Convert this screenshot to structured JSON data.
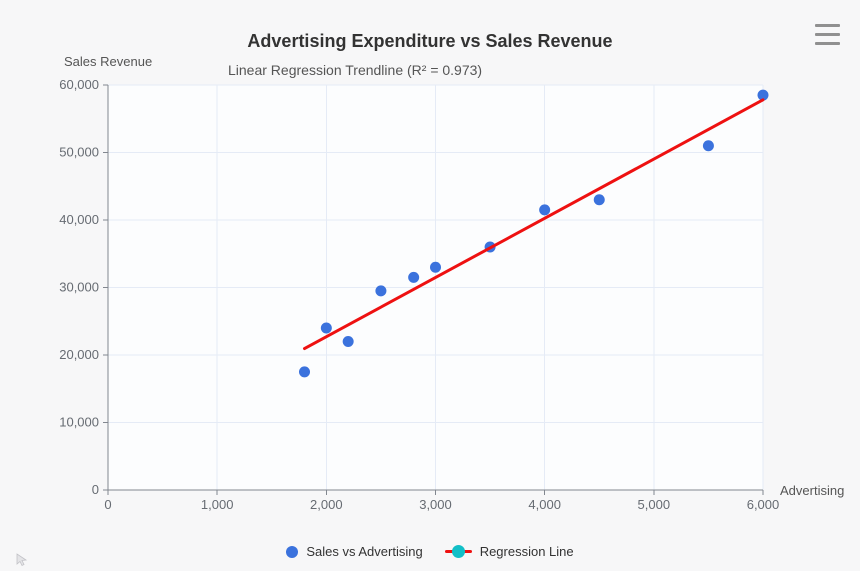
{
  "header": {
    "title": "Advertising Expenditure vs Sales Revenue",
    "subtitle": "Linear Regression Trendline (R² = 0.973)"
  },
  "axes": {
    "y_title": "Sales Revenue",
    "x_title": "Advertising"
  },
  "legend": {
    "items": [
      {
        "label": "Sales vs Advertising",
        "marker": "circle"
      },
      {
        "label": "Regression Line",
        "marker": "line-dot"
      }
    ]
  },
  "icons": {
    "context_menu": "hamburger-icon"
  },
  "colors": {
    "scatter_blue": "#3b72dd",
    "regression_red": "#ee1111",
    "legend_dot_teal": "#12bfc7",
    "grid": "#e5ebf6",
    "axis": "#82878f",
    "title_text": "#333333",
    "subtitle_text": "#555555",
    "tick_text": "#666b72",
    "page_bg": "#f7f7f8",
    "plot_bg": "#fcfdfe"
  },
  "chart_data": {
    "type": "scatter",
    "title": "Advertising Expenditure vs Sales Revenue",
    "subtitle": "Linear Regression Trendline (R² = 0.973)",
    "r_squared": 0.973,
    "xlabel": "Advertising",
    "ylabel": "Sales Revenue",
    "xlim": [
      0,
      6000
    ],
    "ylim": [
      0,
      60000
    ],
    "grid": true,
    "legend_position": "bottom",
    "x_ticks": [
      {
        "value": 0,
        "label": "0"
      },
      {
        "value": 1000,
        "label": "1,000"
      },
      {
        "value": 2000,
        "label": "2,000"
      },
      {
        "value": 3000,
        "label": "3,000"
      },
      {
        "value": 4000,
        "label": "4,000"
      },
      {
        "value": 5000,
        "label": "5,000"
      },
      {
        "value": 6000,
        "label": "6,000"
      }
    ],
    "y_ticks": [
      {
        "value": 0,
        "label": "0"
      },
      {
        "value": 10000,
        "label": "10,000"
      },
      {
        "value": 20000,
        "label": "20,000"
      },
      {
        "value": 30000,
        "label": "30,000"
      },
      {
        "value": 40000,
        "label": "40,000"
      },
      {
        "value": 50000,
        "label": "50,000"
      },
      {
        "value": 60000,
        "label": "60,000"
      }
    ],
    "series": [
      {
        "name": "Sales vs Advertising",
        "type": "scatter",
        "color": "#3b72dd",
        "marker_radius": 5.5,
        "points": [
          [
            1800,
            17500
          ],
          [
            2000,
            24000
          ],
          [
            2200,
            22000
          ],
          [
            2500,
            29500
          ],
          [
            2800,
            31500
          ],
          [
            3000,
            33000
          ],
          [
            3500,
            36000
          ],
          [
            4000,
            41500
          ],
          [
            4500,
            43000
          ],
          [
            5500,
            51000
          ],
          [
            6000,
            58500
          ]
        ]
      },
      {
        "name": "Regression Line",
        "type": "line",
        "color": "#ee1111",
        "width": 3,
        "points": [
          [
            1800,
            20950
          ],
          [
            6000,
            57800
          ]
        ]
      }
    ]
  }
}
